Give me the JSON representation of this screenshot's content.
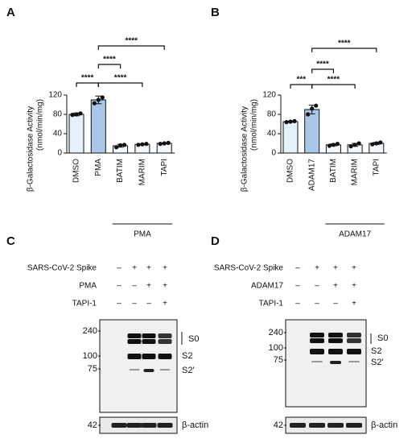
{
  "chart_data": [
    {
      "type": "bar",
      "panel": "A",
      "ylabel": [
        "β-Galactosidase Activity",
        "(nmol/min/mg)"
      ],
      "categories": [
        "DMSO",
        "PMA",
        "BATIM",
        "MARIM",
        "TAPI"
      ],
      "values": [
        80,
        110,
        15,
        18,
        20
      ],
      "errors": [
        3,
        8,
        3,
        1,
        1
      ],
      "points": [
        [
          79,
          80,
          82
        ],
        [
          103,
          110,
          115
        ],
        [
          12,
          16,
          17
        ],
        [
          17,
          18,
          19
        ],
        [
          19,
          20,
          21
        ]
      ],
      "colors": [
        "#e6f2fb",
        "#a8c7e9",
        "#f2f7fc",
        "#f2f7fc",
        "#f2f7fc"
      ],
      "ylim": [
        0,
        120
      ],
      "yticks": [
        0,
        40,
        80,
        120
      ],
      "group": {
        "label": "PMA",
        "categories": [
          "BATIM",
          "MARIM",
          "TAPI"
        ]
      },
      "annotations": [
        {
          "from": "DMSO",
          "to": "PMA",
          "label": "****"
        },
        {
          "from": "PMA",
          "to": "BATIM",
          "label": "****"
        },
        {
          "from": "PMA",
          "to": "MARIM",
          "label": "****"
        },
        {
          "from": "PMA",
          "to": "TAPI",
          "label": "****"
        }
      ]
    },
    {
      "type": "bar",
      "panel": "B",
      "ylabel": [
        "β-Galactosidase Activity",
        "(nmol/min/mg)"
      ],
      "categories": [
        "DMSO",
        "ADAM17",
        "BATIM",
        "MARIM",
        "TAPI"
      ],
      "values": [
        65,
        90,
        17,
        17,
        20
      ],
      "errors": [
        1,
        9,
        2,
        3,
        2
      ],
      "points": [
        [
          64,
          65,
          66
        ],
        [
          80,
          92,
          98
        ],
        [
          15,
          17,
          19
        ],
        [
          14,
          17,
          20
        ],
        [
          18,
          20,
          22
        ]
      ],
      "colors": [
        "#e6f2fb",
        "#a8c7e9",
        "#f2f7fc",
        "#f2f7fc",
        "#f2f7fc"
      ],
      "ylim": [
        0,
        120
      ],
      "yticks": [
        0,
        40,
        80,
        120
      ],
      "group": {
        "label": "ADAM17",
        "categories": [
          "BATIM",
          "MARIM",
          "TAPI"
        ]
      },
      "annotations": [
        {
          "from": "DMSO",
          "to": "ADAM17",
          "label": "***"
        },
        {
          "from": "ADAM17",
          "to": "BATIM",
          "label": "****"
        },
        {
          "from": "ADAM17",
          "to": "MARIM",
          "label": "****"
        },
        {
          "from": "ADAM17",
          "to": "TAPI",
          "label": "****"
        }
      ]
    }
  ],
  "blots": [
    {
      "panel": "C",
      "rows": [
        {
          "label": "SARS-CoV-2 Spike",
          "signs": [
            "–",
            "+",
            "+",
            "+"
          ]
        },
        {
          "label": "PMA",
          "signs": [
            "–",
            "–",
            "+",
            "+"
          ]
        },
        {
          "label": "TAPI-1",
          "signs": [
            "–",
            "–",
            "–",
            "+"
          ]
        }
      ],
      "markers": [
        "240",
        "100",
        "75",
        "42"
      ],
      "bands": [
        "S0",
        "S2",
        "S2'",
        "β-actin"
      ]
    },
    {
      "panel": "D",
      "rows": [
        {
          "label": "SARS-CoV-2 Spike",
          "signs": [
            "–",
            "+",
            "+",
            "+"
          ]
        },
        {
          "label": "ADAM17",
          "signs": [
            "–",
            "–",
            "+",
            "+"
          ]
        },
        {
          "label": "TAPI-1",
          "signs": [
            "–",
            "–",
            "–",
            "+"
          ]
        }
      ],
      "markers": [
        "240",
        "100",
        "75",
        "42"
      ],
      "bands": [
        "S0",
        "S2",
        "S2'",
        "β-actin"
      ]
    }
  ]
}
